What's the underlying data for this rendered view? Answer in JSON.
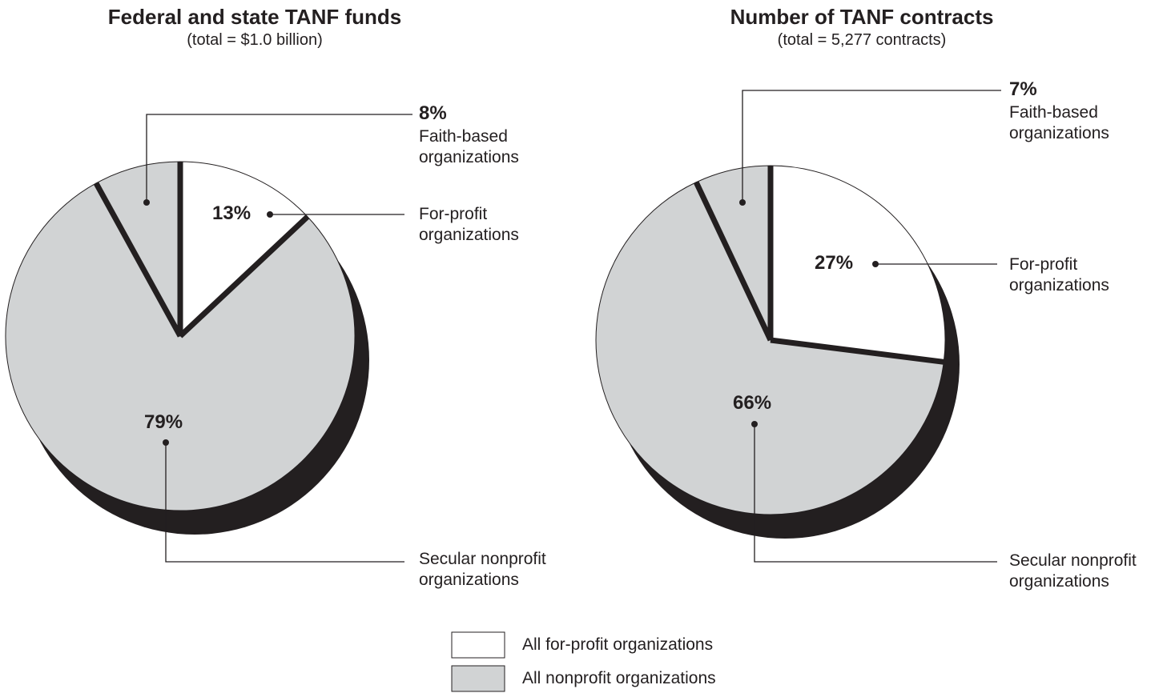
{
  "chart_data": [
    {
      "type": "pie",
      "title": "Federal and state TANF funds",
      "subtitle": "(total = $1.0 billion)",
      "categories": [
        "For-profit organizations",
        "Secular nonprofit organizations",
        "Faith-based organizations"
      ],
      "values": [
        13,
        79,
        8
      ],
      "value_labels": [
        "13%",
        "79%",
        "8%"
      ],
      "colors": [
        "#ffffff",
        "#d1d3d4",
        "#d1d3d4"
      ]
    },
    {
      "type": "pie",
      "title": "Number of TANF contracts",
      "subtitle": "(total = 5,277 contracts)",
      "categories": [
        "For-profit organizations",
        "Secular nonprofit organizations",
        "Faith-based organizations"
      ],
      "values": [
        27,
        66,
        7
      ],
      "value_labels": [
        "27%",
        "66%",
        "7%"
      ],
      "colors": [
        "#ffffff",
        "#d1d3d4",
        "#d1d3d4"
      ]
    }
  ],
  "legend": [
    {
      "label": "All for-profit organizations",
      "color": "#ffffff"
    },
    {
      "label": "All nonprofit organizations",
      "color": "#d1d3d4"
    }
  ]
}
